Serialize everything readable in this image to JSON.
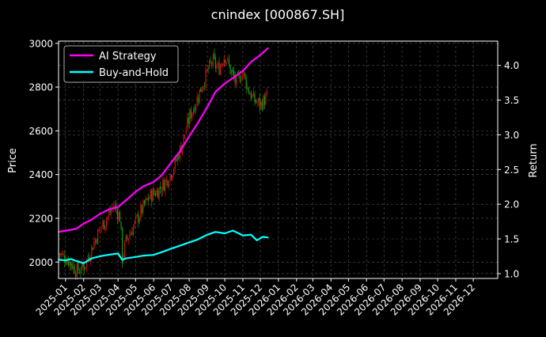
{
  "chart_data": {
    "type": "line",
    "title": "cnindex [000867.SH]",
    "ylabel": "Price",
    "y2label": "Return",
    "ylim": [
      1925,
      3010
    ],
    "y2lim": [
      0.93,
      4.35
    ],
    "yticks": [
      2000,
      2200,
      2400,
      2600,
      2800,
      3000
    ],
    "y2ticks": [
      1.0,
      1.5,
      2.0,
      2.5,
      3.0,
      3.5,
      4.0
    ],
    "ytick_labels": [
      "2000",
      "2200",
      "2400",
      "2600",
      "2800",
      "3000"
    ],
    "y2tick_labels": [
      "1.0",
      "1.5",
      "2.0",
      "2.5",
      "3.0",
      "3.5",
      "4.0"
    ],
    "xticks": [
      "2025-01",
      "2025-02",
      "2025-03",
      "2025-04",
      "2025-05",
      "2025-06",
      "2025-07",
      "2025-08",
      "2025-09",
      "2025-10",
      "2025-11",
      "2025-12",
      "2026-01",
      "2026-02",
      "2026-03",
      "2026-04",
      "2026-05",
      "2026-06",
      "2026-07",
      "2026-08",
      "2026-09",
      "2026-10",
      "2026-11",
      "2026-12"
    ],
    "grid": true,
    "legend": {
      "placement": "top-left",
      "entries": [
        "AI Strategy",
        "Buy-and-Hold"
      ]
    },
    "series": [
      {
        "name": "AI Strategy",
        "color": "#ff00ff",
        "axis": "right",
        "points": [
          [
            "2024-12-20",
            1.6
          ],
          [
            "2025-01-01",
            1.62
          ],
          [
            "2025-01-10",
            1.63
          ],
          [
            "2025-01-20",
            1.65
          ],
          [
            "2025-02-01",
            1.72
          ],
          [
            "2025-02-15",
            1.78
          ],
          [
            "2025-03-01",
            1.86
          ],
          [
            "2025-03-15",
            1.92
          ],
          [
            "2025-04-01",
            1.96
          ],
          [
            "2025-04-15",
            2.06
          ],
          [
            "2025-05-01",
            2.18
          ],
          [
            "2025-05-15",
            2.26
          ],
          [
            "2025-06-01",
            2.32
          ],
          [
            "2025-06-15",
            2.42
          ],
          [
            "2025-07-01",
            2.6
          ],
          [
            "2025-07-15",
            2.75
          ],
          [
            "2025-08-01",
            2.98
          ],
          [
            "2025-08-15",
            3.16
          ],
          [
            "2025-09-01",
            3.4
          ],
          [
            "2025-09-15",
            3.62
          ],
          [
            "2025-10-01",
            3.74
          ],
          [
            "2025-10-15",
            3.82
          ],
          [
            "2025-11-01",
            3.92
          ],
          [
            "2025-11-15",
            4.05
          ],
          [
            "2025-12-01",
            4.15
          ],
          [
            "2025-12-14",
            4.25
          ]
        ]
      },
      {
        "name": "Buy-and-Hold",
        "color": "#00ffff",
        "axis": "right",
        "points": [
          [
            "2024-12-20",
            1.2
          ],
          [
            "2025-01-01",
            1.19
          ],
          [
            "2025-01-10",
            1.21
          ],
          [
            "2025-01-20",
            1.18
          ],
          [
            "2025-02-01",
            1.15
          ],
          [
            "2025-02-15",
            1.22
          ],
          [
            "2025-03-01",
            1.25
          ],
          [
            "2025-03-15",
            1.27
          ],
          [
            "2025-04-01",
            1.29
          ],
          [
            "2025-04-08",
            1.2
          ],
          [
            "2025-04-15",
            1.22
          ],
          [
            "2025-05-01",
            1.24
          ],
          [
            "2025-05-15",
            1.26
          ],
          [
            "2025-06-01",
            1.27
          ],
          [
            "2025-06-15",
            1.31
          ],
          [
            "2025-07-01",
            1.36
          ],
          [
            "2025-07-15",
            1.4
          ],
          [
            "2025-08-01",
            1.45
          ],
          [
            "2025-08-15",
            1.49
          ],
          [
            "2025-09-01",
            1.56
          ],
          [
            "2025-09-15",
            1.6
          ],
          [
            "2025-10-01",
            1.58
          ],
          [
            "2025-10-15",
            1.62
          ],
          [
            "2025-11-01",
            1.55
          ],
          [
            "2025-11-15",
            1.56
          ],
          [
            "2025-11-25",
            1.48
          ],
          [
            "2025-12-05",
            1.53
          ],
          [
            "2025-12-14",
            1.52
          ]
        ]
      },
      {
        "name": "",
        "type": "candlestick",
        "axis": "left",
        "points": [
          [
            "2024-12-20",
            2040
          ],
          [
            "2025-01-01",
            2020
          ],
          [
            "2025-01-10",
            1995
          ],
          [
            "2025-01-20",
            1960
          ],
          [
            "2025-02-01",
            1975
          ],
          [
            "2025-02-10",
            2030
          ],
          [
            "2025-02-20",
            2100
          ],
          [
            "2025-03-01",
            2150
          ],
          [
            "2025-03-15",
            2210
          ],
          [
            "2025-03-25",
            2260
          ],
          [
            "2025-04-05",
            2200
          ],
          [
            "2025-04-08",
            2010
          ],
          [
            "2025-04-15",
            2100
          ],
          [
            "2025-04-25",
            2150
          ],
          [
            "2025-05-10",
            2230
          ],
          [
            "2025-05-25",
            2300
          ],
          [
            "2025-06-10",
            2330
          ],
          [
            "2025-06-25",
            2380
          ],
          [
            "2025-07-05",
            2430
          ],
          [
            "2025-07-20",
            2540
          ],
          [
            "2025-08-01",
            2660
          ],
          [
            "2025-08-15",
            2750
          ],
          [
            "2025-09-01",
            2870
          ],
          [
            "2025-09-10",
            2920
          ],
          [
            "2025-09-20",
            2880
          ],
          [
            "2025-10-01",
            2950
          ],
          [
            "2025-10-10",
            2880
          ],
          [
            "2025-10-20",
            2820
          ],
          [
            "2025-11-01",
            2870
          ],
          [
            "2025-11-10",
            2790
          ],
          [
            "2025-11-20",
            2740
          ],
          [
            "2025-12-01",
            2720
          ],
          [
            "2025-12-14",
            2760
          ]
        ]
      }
    ]
  }
}
